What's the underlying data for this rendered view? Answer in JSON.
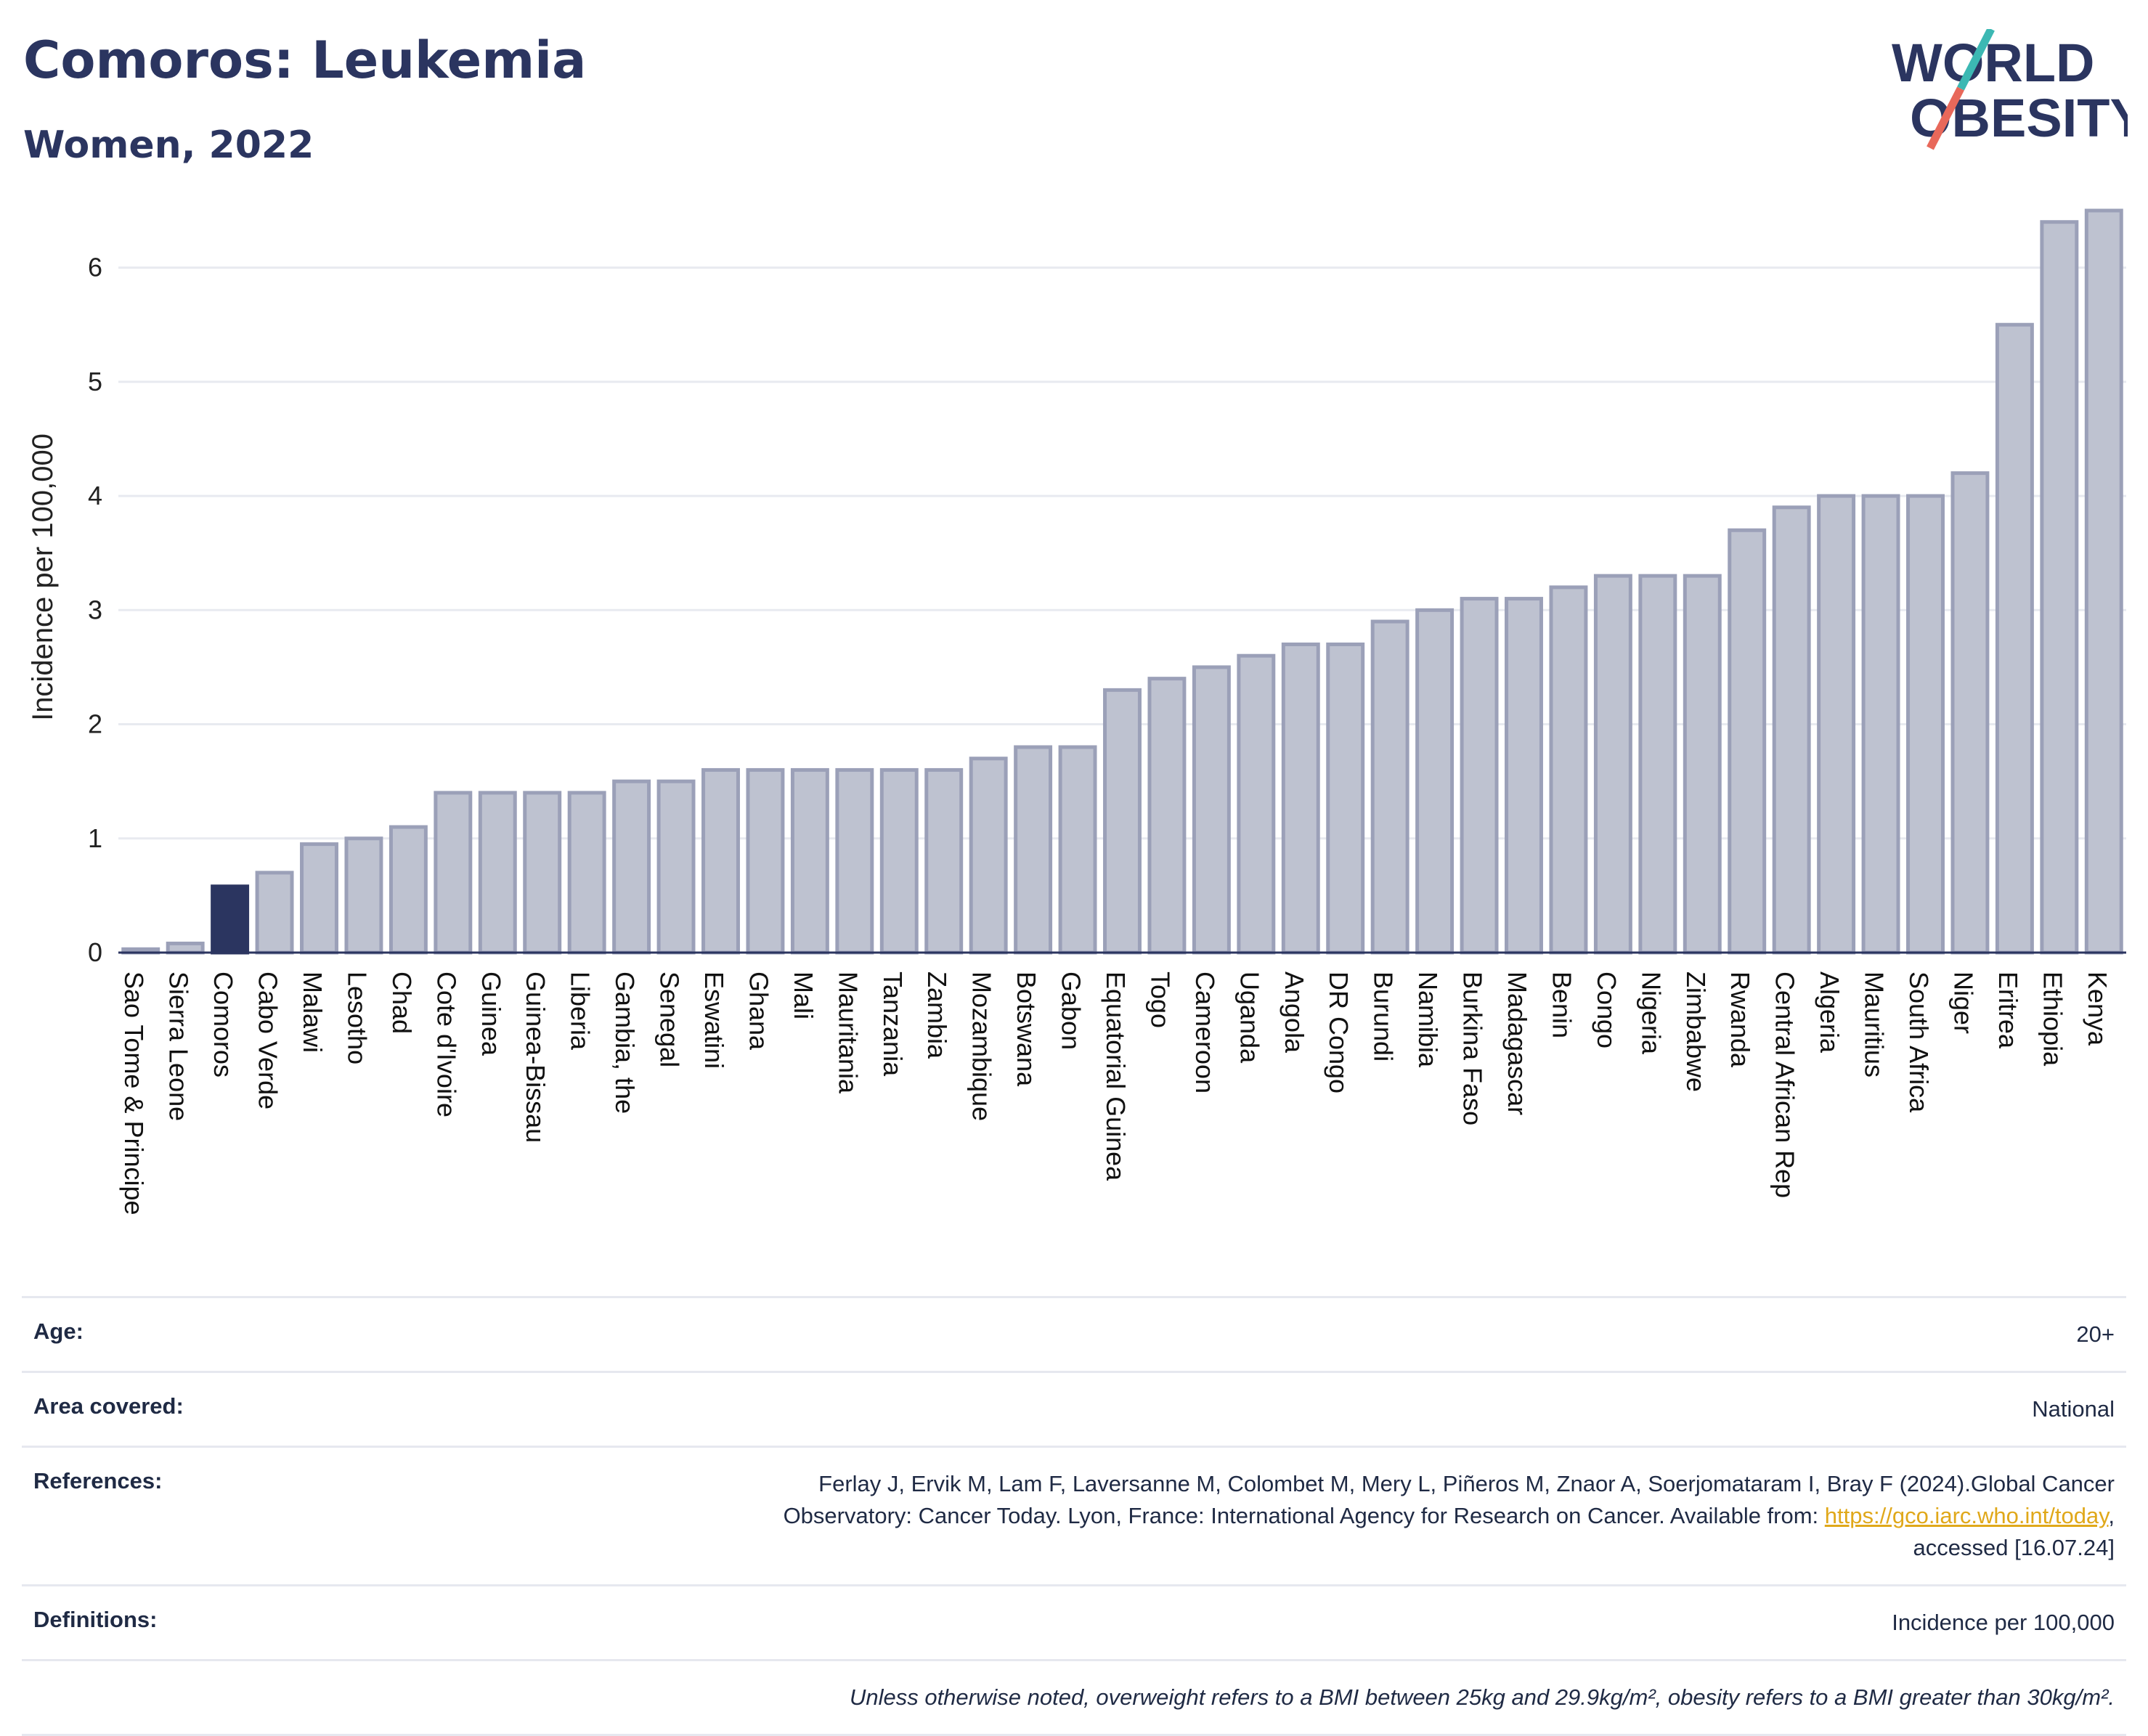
{
  "header": {
    "title": "Comoros: Leukemia",
    "subtitle": "Women, 2022"
  },
  "logo": {
    "line1": "WORLD",
    "line2": "OBESITY",
    "colors": {
      "text": "#2b3560",
      "slash_top": "#3cb8b3",
      "slash_bottom": "#e8685a"
    }
  },
  "chart_data": {
    "type": "bar",
    "ylabel": "Incidence per 100,000",
    "ylim": [
      0,
      6.5
    ],
    "yticks": [
      0,
      1,
      2,
      3,
      4,
      5,
      6
    ],
    "highlight": "Comoros",
    "colors": {
      "bar": "#bec2d0",
      "bar_border": "#9ba0b8",
      "highlight": "#2b3560",
      "grid": "#e8eaf0",
      "axis": "#2b3560"
    },
    "categories": [
      "Sao Tome & Principe",
      "Sierra Leone",
      "Comoros",
      "Cabo Verde",
      "Malawi",
      "Lesotho",
      "Chad",
      "Cote d'Ivoire",
      "Guinea",
      "Guinea-Bissau",
      "Liberia",
      "Gambia, the",
      "Senegal",
      "Eswatini",
      "Ghana",
      "Mali",
      "Mauritania",
      "Tanzania",
      "Zambia",
      "Mozambique",
      "Botswana",
      "Gabon",
      "Equatorial Guinea",
      "Togo",
      "Cameroon",
      "Uganda",
      "Angola",
      "DR Congo",
      "Burundi",
      "Namibia",
      "Burkina Faso",
      "Madagascar",
      "Benin",
      "Congo",
      "Nigeria",
      "Zimbabwe",
      "Rwanda",
      "Central African Rep",
      "Algeria",
      "Mauritius",
      "South Africa",
      "Niger",
      "Eritrea",
      "Ethiopia",
      "Kenya"
    ],
    "values": [
      0.03,
      0.08,
      0.58,
      0.7,
      0.95,
      1.0,
      1.1,
      1.4,
      1.4,
      1.4,
      1.4,
      1.5,
      1.5,
      1.6,
      1.6,
      1.6,
      1.6,
      1.6,
      1.6,
      1.7,
      1.8,
      1.8,
      2.3,
      2.4,
      2.5,
      2.6,
      2.7,
      2.7,
      2.9,
      3.0,
      3.1,
      3.1,
      3.2,
      3.3,
      3.3,
      3.3,
      3.7,
      3.9,
      4.0,
      4.0,
      4.0,
      4.2,
      5.5,
      6.4,
      6.5
    ]
  },
  "meta": {
    "age_label": "Age:",
    "age_value": "20+",
    "area_label": "Area covered:",
    "area_value": "National",
    "references_label": "References:",
    "references_text_1": "Ferlay J, Ervik M, Lam F, Laversanne M, Colombet M, Mery L, Piñeros M, Znaor A, Soerjomataram I, Bray F (2024).Global Cancer",
    "references_text_2": "Observatory: Cancer Today. Lyon, France: International Agency for Research on Cancer. Available from: ",
    "references_link": "https://gco.iarc.who.int/today",
    "references_text_3": "accessed [16.07.24]",
    "definitions_label": "Definitions:",
    "definitions_value": "Incidence per 100,000",
    "note": "Unless otherwise noted, overweight refers to a BMI between 25kg and 29.9kg/m², obesity refers to a BMI greater than 30kg/m²."
  }
}
